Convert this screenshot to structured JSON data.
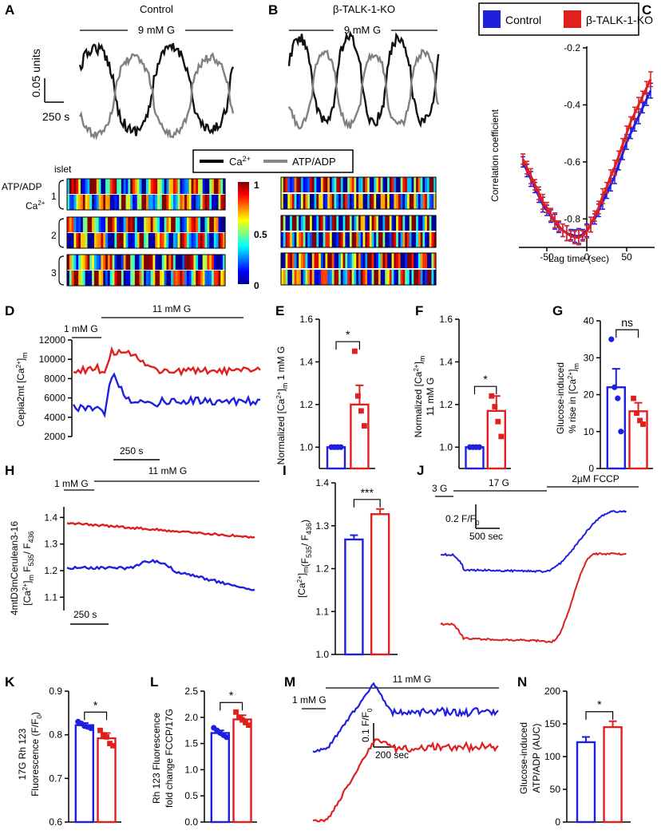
{
  "panels": {
    "A": {
      "letter": "A",
      "title": "Control",
      "stim": "9 mM G",
      "scale_y": "0.05 units",
      "scale_x": "250 s"
    },
    "B": {
      "letter": "B",
      "title": "β-TALK-1-KO",
      "stim": "9 mM G"
    },
    "C": {
      "letter": "C",
      "legend": [
        "Control",
        "β-TALK-1-KO"
      ],
      "xlabel": "Lag time (sec)",
      "ylabel": "Correlation coefficient"
    },
    "heat": {
      "legend_ca": "Ca",
      "legend_atp": "ATP/ADP",
      "islet": "islet",
      "row_atp": "ATP/ADP",
      "row_ca": "Ca",
      "sup2plus": "2+",
      "islets": [
        "1",
        "2",
        "3"
      ],
      "cbar": [
        "1",
        "0.5",
        "0"
      ]
    },
    "D": {
      "letter": "D",
      "stim1": "1 mM G",
      "stim2": "11 mM G",
      "ylabel": "Cepia2mt [Ca",
      "ylabel_sub": "m",
      "scale_x": "250 s"
    },
    "E": {
      "letter": "E",
      "ylabel": "Normalized [Ca",
      "ylabel_tail": "1 mM G",
      "sig": "*"
    },
    "F": {
      "letter": "F",
      "ylabel": "Normalized [Ca",
      "ylabel2": "11 mM G",
      "sig": "*"
    },
    "G": {
      "letter": "G",
      "ylabel1": "Glucose-induced",
      "ylabel2": "% rise in [Ca",
      "sig": "ns"
    },
    "H": {
      "letter": "H",
      "stim1": "1 mM G",
      "stim2": "11 mM G",
      "ylabel1": "4mtD3mCerulean3-16",
      "ylabel2": "F",
      "ylabel2b": "535",
      "ylabel2c": "436",
      "scale_x": "250 s"
    },
    "I": {
      "letter": "I",
      "ylabel": "[Ca",
      "ylabel_tail": "(F",
      "sig": "***"
    },
    "J": {
      "letter": "J",
      "stim1": "3 G",
      "stim2": "17 G",
      "stim3": "2µM FCCP",
      "scale_y": "0.2 F/F",
      "scale_x": "500 sec"
    },
    "K": {
      "letter": "K",
      "ylabel1": "17G Rh 123",
      "ylabel2": "Fluorescence (F/F",
      "sig": "*"
    },
    "L": {
      "letter": "L",
      "ylabel1": "Rh 123 Fluorescence",
      "ylabel2": "fold change FCCP/17G",
      "sig": "*"
    },
    "M": {
      "letter": "M",
      "stim1": "1 mM G",
      "stim2": "11 mM G",
      "scale_y": "0.1 F/F",
      "scale_x": "200 sec"
    },
    "N": {
      "letter": "N",
      "ylabel1": "Glucose-induced",
      "ylabel2": "ATP/ADP (AUC)",
      "sig": "*"
    }
  },
  "colors": {
    "control": "#1f1fe0",
    "ko": "#e01f1f",
    "ca": "#111111",
    "atp": "#808080"
  },
  "chart_data": [
    {
      "id": "C",
      "type": "line",
      "xlabel": "Lag time (sec)",
      "ylabel": "Correlation coefficient",
      "xlim": [
        -85,
        85
      ],
      "ylim": [
        -0.9,
        -0.2
      ],
      "x_ticks": [
        -50,
        0,
        50
      ],
      "y_ticks": [
        -0.2,
        -0.4,
        -0.6,
        -0.8
      ],
      "series": [
        {
          "name": "Control",
          "x": [
            -80,
            -75,
            -70,
            -65,
            -60,
            -55,
            -50,
            -45,
            -40,
            -35,
            -30,
            -25,
            -20,
            -15,
            -10,
            -5,
            0,
            5,
            10,
            15,
            20,
            25,
            30,
            35,
            40,
            45,
            50,
            55,
            60,
            65,
            70,
            75,
            80
          ],
          "y": [
            -0.6,
            -0.63,
            -0.66,
            -0.69,
            -0.72,
            -0.75,
            -0.77,
            -0.79,
            -0.81,
            -0.83,
            -0.84,
            -0.85,
            -0.855,
            -0.86,
            -0.86,
            -0.855,
            -0.84,
            -0.82,
            -0.8,
            -0.77,
            -0.74,
            -0.71,
            -0.68,
            -0.65,
            -0.61,
            -0.57,
            -0.53,
            -0.5,
            -0.47,
            -0.44,
            -0.41,
            -0.38,
            -0.35
          ]
        },
        {
          "name": "β-TALK-1-KO",
          "x": [
            -80,
            -75,
            -70,
            -65,
            -60,
            -55,
            -50,
            -45,
            -40,
            -35,
            -30,
            -25,
            -20,
            -15,
            -10,
            -5,
            0,
            5,
            10,
            15,
            20,
            25,
            30,
            35,
            40,
            45,
            50,
            55,
            60,
            65,
            70,
            75,
            80
          ],
          "y": [
            -0.59,
            -0.62,
            -0.65,
            -0.68,
            -0.71,
            -0.74,
            -0.76,
            -0.785,
            -0.805,
            -0.825,
            -0.84,
            -0.85,
            -0.86,
            -0.865,
            -0.865,
            -0.86,
            -0.845,
            -0.82,
            -0.79,
            -0.76,
            -0.72,
            -0.69,
            -0.65,
            -0.62,
            -0.58,
            -0.54,
            -0.5,
            -0.46,
            -0.43,
            -0.4,
            -0.37,
            -0.34,
            -0.31
          ]
        }
      ]
    },
    {
      "id": "E",
      "type": "bar",
      "ylim": [
        0.9,
        1.6
      ],
      "y_ticks": [
        1.0,
        1.2,
        1.4,
        1.6
      ],
      "values": [
        1.0,
        1.2
      ],
      "errors": [
        0,
        0.09
      ],
      "points": [
        [
          1,
          1,
          1,
          1
        ],
        [
          1.45,
          1.24,
          1.17,
          1.1
        ]
      ]
    },
    {
      "id": "F",
      "type": "bar",
      "ylim": [
        0.9,
        1.6
      ],
      "y_ticks": [
        1.0,
        1.2,
        1.4,
        1.6
      ],
      "values": [
        1.0,
        1.17
      ],
      "errors": [
        0,
        0.07
      ],
      "points": [
        [
          1,
          1,
          1,
          1
        ],
        [
          1.24,
          1.19,
          1.12,
          1.05
        ]
      ]
    },
    {
      "id": "G",
      "type": "bar",
      "ylim": [
        0,
        40
      ],
      "y_ticks": [
        0,
        10,
        20,
        30,
        40
      ],
      "values": [
        22,
        15.5
      ],
      "errors": [
        5,
        2.3
      ],
      "points": [
        [
          35,
          22,
          19,
          10
        ],
        [
          19,
          15,
          13,
          12
        ]
      ]
    },
    {
      "id": "I",
      "type": "bar",
      "ylim": [
        1.0,
        1.4
      ],
      "y_ticks": [
        1.0,
        1.1,
        1.2,
        1.3,
        1.4
      ],
      "values": [
        1.268,
        1.327
      ],
      "errors": [
        0.01,
        0.012
      ]
    },
    {
      "id": "K",
      "type": "bar",
      "ylim": [
        0.6,
        0.9
      ],
      "y_ticks": [
        0.6,
        0.7,
        0.8,
        0.9
      ],
      "values": [
        0.822,
        0.792
      ],
      "errors": [
        0.005,
        0.012
      ],
      "points": [
        [
          0.83,
          0.826,
          0.82,
          0.818,
          0.815
        ],
        [
          0.81,
          0.8,
          0.795,
          0.78,
          0.775
        ]
      ]
    },
    {
      "id": "L",
      "type": "bar",
      "ylim": [
        0,
        2.5
      ],
      "y_ticks": [
        0.0,
        0.5,
        1.0,
        1.5,
        2.0,
        2.5
      ],
      "values": [
        1.7,
        1.96
      ],
      "errors": [
        0.05,
        0.08
      ],
      "points": [
        [
          1.8,
          1.75,
          1.7,
          1.66,
          1.62
        ],
        [
          2.1,
          2.0,
          1.95,
          1.9,
          1.85
        ]
      ]
    },
    {
      "id": "N",
      "type": "bar",
      "ylim": [
        0,
        200
      ],
      "y_ticks": [
        0,
        50,
        100,
        150,
        200
      ],
      "values": [
        122,
        145
      ],
      "errors": [
        8,
        9
      ]
    }
  ]
}
